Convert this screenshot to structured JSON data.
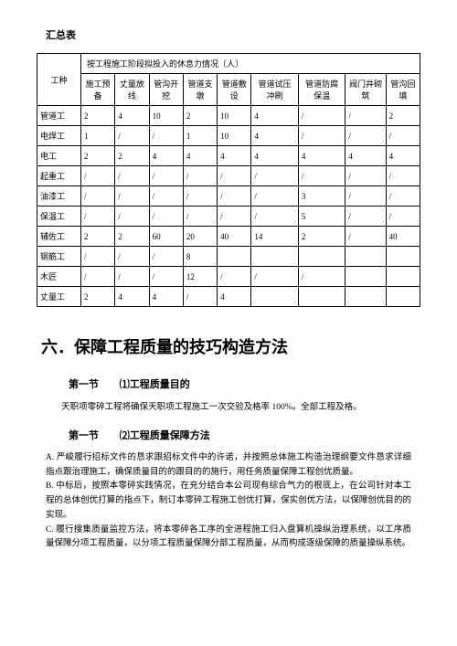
{
  "summary_title": "汇总表",
  "table": {
    "row_header_label": "工种",
    "span_header": "按工程施工阶段拟投入的休息力情况〔人〕",
    "columns": [
      "施工预备",
      "丈量放线",
      "管沟开挖",
      "管道支墩",
      "管道敷设",
      "管道试压冲刷",
      "管道防腐保温",
      "阀门井砌筑",
      "管沟回填"
    ],
    "rows": [
      {
        "label": "管道工",
        "cells": [
          "2",
          "4",
          "10",
          "2",
          "10",
          "4",
          "/",
          "/",
          "2"
        ]
      },
      {
        "label": "电焊工",
        "cells": [
          "1",
          "/",
          "/",
          "1",
          "10",
          "4",
          "/",
          "/",
          "/"
        ]
      },
      {
        "label": "电工",
        "cells": [
          "2",
          "2",
          "4",
          "4",
          "4",
          "4",
          "4",
          "4",
          "4"
        ]
      },
      {
        "label": "起重工",
        "cells": [
          "/",
          "/",
          "/",
          "/",
          "/",
          "/",
          "/",
          "/",
          "/"
        ]
      },
      {
        "label": "油漆工",
        "cells": [
          "/",
          "/",
          "/",
          "/",
          "/",
          "/",
          "3",
          "/",
          "/"
        ]
      },
      {
        "label": "保温工",
        "cells": [
          "/",
          "/",
          "/",
          "/",
          "/",
          "/",
          "5",
          "/",
          "/"
        ]
      },
      {
        "label": "辅佐工",
        "cells": [
          "2",
          "2",
          "60",
          "20",
          "40",
          "14",
          "2",
          "/",
          "40"
        ]
      },
      {
        "label": "钢筋工",
        "cells": [
          "/",
          "/",
          "/",
          "8",
          "",
          "",
          "",
          "",
          ""
        ]
      },
      {
        "label": "木匠",
        "cells": [
          "/",
          "/",
          "/",
          "12",
          "/",
          "/",
          "/",
          "",
          ""
        ]
      },
      {
        "label": "丈量工",
        "cells": [
          "2",
          "4",
          "4",
          "/",
          "4",
          "",
          "",
          "",
          ""
        ]
      }
    ]
  },
  "main_heading": "六．保障工程质量的技巧构造方法",
  "section1": {
    "prefix": "第一节",
    "title": "⑴工程质量目的",
    "para": "天职项零碎工程将确保天职项工程施工一次交验及格率 100%。全部工程及格。"
  },
  "section2": {
    "prefix": "第一节",
    "title": "⑵工程质量保障方法",
    "body": "A. 严峻履行招标文件的恳求跟招标文件中的许诺，并按照总体施工构造治理纲要文件恳求详细指点跟治理施工，确保质量目的的跟目的的施行，用任务质量保障工程创优质量。\nB. 中标后，按照本零碎实践情况，在充分结合本公司现有综合气力的根底上，在公司针对本工程的总体创优打算的指点下，制订本零碎工程施工创优打算，保实创优方法，以保障创优目的的实现。\nC. 履行搜集质量监控方法，将本零碎各工序的全进程施工归入盘算机操纵治理系统，以工序质量保障分项工程质量，以分项工程质量保障分部工程质量，从而构成逐级保障的质量操纵系统。"
  }
}
